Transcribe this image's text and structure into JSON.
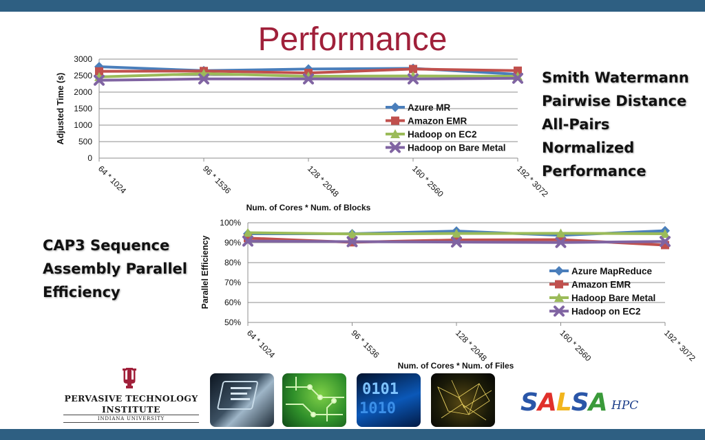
{
  "slide": {
    "title": "Performance",
    "right_text": [
      "Smith Watermann",
      "Pairwise Distance",
      "All-Pairs",
      "Normalized",
      "Performance"
    ],
    "left_text": [
      "CAP3 Sequence",
      "Assembly Parallel",
      "Efficiency"
    ],
    "logo": {
      "line1": "PERVASIVE TECHNOLOGY",
      "line2": "INSTITUTE",
      "line3": "INDIANA UNIVERSITY",
      "salsa_letters": [
        "S",
        "A",
        "L",
        "S",
        "A"
      ],
      "salsa_suffix": "HPC"
    },
    "colors": {
      "title": "#a0203a",
      "band": "#2e5f82"
    }
  },
  "chart_data": [
    {
      "type": "line",
      "title": "",
      "xlabel": "Num. of Cores * Num. of Blocks",
      "ylabel": "Adjusted Time (s)",
      "categories": [
        "64 * 1024",
        "96 * 1536",
        "128 * 2048",
        "160 * 2560",
        "192 * 3072"
      ],
      "ylim": [
        0,
        3000
      ],
      "yticks": [
        0,
        500,
        1000,
        1500,
        2000,
        2500,
        3000
      ],
      "ytick_labels": [
        "0",
        "500",
        "1000",
        "1500",
        "2000",
        "2500",
        "3000"
      ],
      "grid": true,
      "legend_position": "lower-right",
      "series": [
        {
          "name": "Azure MR",
          "color": "#4a7ebb",
          "marker": "diamond",
          "values": [
            2770,
            2650,
            2700,
            2720,
            2540
          ]
        },
        {
          "name": "Amazon EMR",
          "color": "#c0504d",
          "marker": "square",
          "values": [
            2630,
            2640,
            2580,
            2700,
            2650
          ]
        },
        {
          "name": "Hadoop on EC2",
          "color": "#9bbb59",
          "marker": "triangle",
          "values": [
            2460,
            2560,
            2480,
            2490,
            2480
          ]
        },
        {
          "name": "Hadoop on Bare Metal",
          "color": "#8064a2",
          "marker": "x",
          "values": [
            2360,
            2400,
            2400,
            2400,
            2420
          ]
        }
      ]
    },
    {
      "type": "line",
      "title": "",
      "xlabel": "Num. of Cores * Num. of Files",
      "ylabel": "Parallel Efficiency",
      "categories": [
        "64 * 1024",
        "96 * 1536",
        "128 * 2048",
        "160 * 2560",
        "192 * 3072"
      ],
      "ylim": [
        50,
        100
      ],
      "yticks": [
        50,
        60,
        70,
        80,
        90,
        100
      ],
      "ytick_labels": [
        "50%",
        "60%",
        "70%",
        "80%",
        "90%",
        "100%"
      ],
      "grid": true,
      "legend_position": "lower-right",
      "series": [
        {
          "name": "Azure MapReduce",
          "color": "#4a7ebb",
          "marker": "diamond",
          "values": [
            94.5,
            94.5,
            95.8,
            93.7,
            96.0
          ]
        },
        {
          "name": "Amazon EMR",
          "color": "#c0504d",
          "marker": "square",
          "values": [
            92.3,
            90.2,
            91.4,
            91.5,
            88.8
          ]
        },
        {
          "name": "Hadoop Bare Metal",
          "color": "#9bbb59",
          "marker": "triangle",
          "values": [
            95.0,
            94.4,
            94.6,
            94.7,
            94.5
          ]
        },
        {
          "name": "Hadoop on EC2",
          "color": "#8064a2",
          "marker": "x",
          "values": [
            90.8,
            90.5,
            90.3,
            90.1,
            90.6
          ]
        }
      ]
    }
  ]
}
